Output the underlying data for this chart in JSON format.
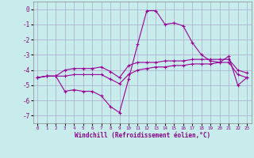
{
  "xlabel": "Windchill (Refroidissement éolien,°C)",
  "bg_color": "#c8ecec",
  "grid_color": "#aaaacc",
  "line_color": "#990099",
  "xlim": [
    -0.5,
    23.5
  ],
  "ylim": [
    -7.5,
    0.5
  ],
  "xticks": [
    0,
    1,
    2,
    3,
    4,
    5,
    6,
    7,
    8,
    9,
    10,
    11,
    12,
    13,
    14,
    15,
    16,
    17,
    18,
    19,
    20,
    21,
    22,
    23
  ],
  "yticks": [
    0,
    -1,
    -2,
    -3,
    -4,
    -5,
    -6,
    -7
  ],
  "line1_x": [
    0,
    1,
    2,
    3,
    4,
    5,
    6,
    7,
    8,
    9,
    10,
    11,
    12,
    13,
    14,
    15,
    16,
    17,
    18,
    19,
    20,
    21,
    22,
    23
  ],
  "line1_y": [
    -4.5,
    -4.4,
    -4.4,
    -5.4,
    -5.3,
    -5.4,
    -5.4,
    -5.7,
    -6.4,
    -6.8,
    -4.6,
    -2.3,
    -0.1,
    -0.1,
    -1.0,
    -0.9,
    -1.1,
    -2.2,
    -3.0,
    -3.4,
    -3.5,
    -3.1,
    -5.0,
    -4.5
  ],
  "line2_x": [
    0,
    1,
    2,
    3,
    4,
    5,
    6,
    7,
    8,
    9,
    10,
    11,
    12,
    13,
    14,
    15,
    16,
    17,
    18,
    19,
    20,
    21,
    22,
    23
  ],
  "line2_y": [
    -4.5,
    -4.4,
    -4.4,
    -4.4,
    -4.3,
    -4.3,
    -4.3,
    -4.3,
    -4.6,
    -4.9,
    -4.3,
    -4.0,
    -3.9,
    -3.8,
    -3.8,
    -3.7,
    -3.7,
    -3.6,
    -3.6,
    -3.6,
    -3.5,
    -3.5,
    -4.3,
    -4.5
  ],
  "line3_x": [
    0,
    1,
    2,
    3,
    4,
    5,
    6,
    7,
    8,
    9,
    10,
    11,
    12,
    13,
    14,
    15,
    16,
    17,
    18,
    19,
    20,
    21,
    22,
    23
  ],
  "line3_y": [
    -4.5,
    -4.4,
    -4.4,
    -4.0,
    -3.9,
    -3.9,
    -3.9,
    -3.8,
    -4.1,
    -4.5,
    -3.7,
    -3.5,
    -3.5,
    -3.5,
    -3.4,
    -3.4,
    -3.4,
    -3.3,
    -3.3,
    -3.3,
    -3.3,
    -3.3,
    -4.0,
    -4.2
  ]
}
